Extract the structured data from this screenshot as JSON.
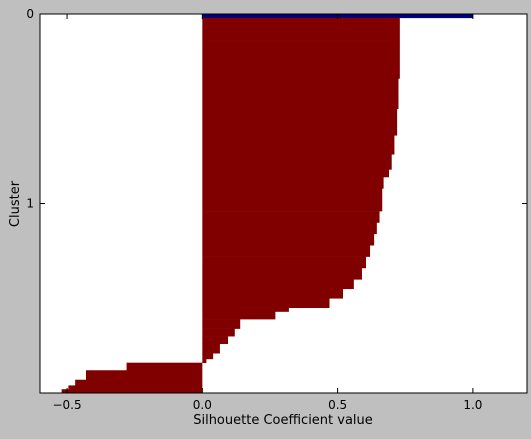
{
  "chart_data": {
    "type": "bar",
    "orientation": "horizontal",
    "title": "",
    "xlabel": "Silhouette Coefficient value",
    "ylabel": "Cluster",
    "xlim": [
      -0.6,
      1.2
    ],
    "ylim": [
      0,
      2.0
    ],
    "y_inverted": true,
    "xticks": [
      -0.5,
      0.0,
      0.5,
      1.0
    ],
    "xtick_labels": [
      "−0.5",
      "0.0",
      "0.5",
      "1.0"
    ],
    "yticks": [
      0,
      1
    ],
    "ytick_labels": [
      "0",
      "1"
    ],
    "grid": false,
    "colors": {
      "figure_background": "#bfbfbf",
      "plot_background": "#ffffff",
      "cluster_0": "#000080",
      "cluster_1": "#800000"
    },
    "series": [
      {
        "cluster": 0,
        "profile": [
          {
            "y": 0.0,
            "x": 1.0
          },
          {
            "y": 0.02,
            "x": 1.0
          }
        ]
      },
      {
        "cluster": 1,
        "profile": [
          {
            "y": 0.02,
            "x": 0.73
          },
          {
            "y": 0.14,
            "x": 0.73
          },
          {
            "y": 0.34,
            "x": 0.725
          },
          {
            "y": 0.5,
            "x": 0.72
          },
          {
            "y": 0.64,
            "x": 0.71
          },
          {
            "y": 0.74,
            "x": 0.7
          },
          {
            "y": 0.82,
            "x": 0.69
          },
          {
            "y": 0.86,
            "x": 0.67
          },
          {
            "y": 0.92,
            "x": 0.665
          },
          {
            "y": 1.04,
            "x": 0.655
          },
          {
            "y": 1.1,
            "x": 0.645
          },
          {
            "y": 1.16,
            "x": 0.635
          },
          {
            "y": 1.22,
            "x": 0.62
          },
          {
            "y": 1.28,
            "x": 0.605
          },
          {
            "y": 1.34,
            "x": 0.59
          },
          {
            "y": 1.4,
            "x": 0.56
          },
          {
            "y": 1.45,
            "x": 0.52
          },
          {
            "y": 1.5,
            "x": 0.47
          },
          {
            "y": 1.55,
            "x": 0.32
          },
          {
            "y": 1.57,
            "x": 0.27
          },
          {
            "y": 1.61,
            "x": 0.14
          },
          {
            "y": 1.66,
            "x": 0.12
          },
          {
            "y": 1.7,
            "x": 0.095
          },
          {
            "y": 1.74,
            "x": 0.065
          },
          {
            "y": 1.79,
            "x": 0.04
          },
          {
            "y": 1.82,
            "x": 0.015
          },
          {
            "y": 1.84,
            "x": -0.28
          },
          {
            "y": 1.88,
            "x": -0.43
          },
          {
            "y": 1.93,
            "x": -0.47
          },
          {
            "y": 1.96,
            "x": -0.495
          },
          {
            "y": 1.98,
            "x": -0.52
          },
          {
            "y": 2.0,
            "x": -0.52
          }
        ]
      }
    ]
  }
}
